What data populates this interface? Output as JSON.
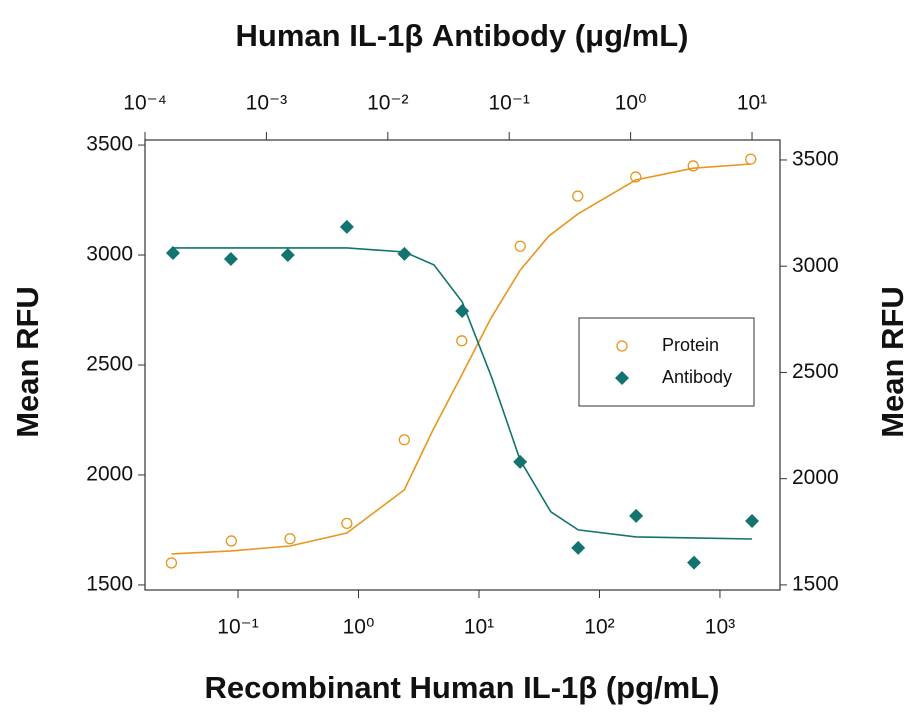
{
  "chart_data": {
    "type": "scatter",
    "x2label": "Human IL-1β Antibody (μg/mL)",
    "xlabel": "Recombinant Human IL-1β (pg/mL)",
    "ylabel": "Mean RFU",
    "y2label": "Mean RFU",
    "xscale": "log",
    "x2scale": "log",
    "xlim": [
      0.0169,
      3150
    ],
    "xticks": [
      {
        "value": 0.1,
        "label": "10⁻¹"
      },
      {
        "value": 1,
        "label": "10⁰"
      },
      {
        "value": 10,
        "label": "10¹"
      },
      {
        "value": 100,
        "label": "10²"
      },
      {
        "value": 1000,
        "label": "10³"
      }
    ],
    "x2lim": [
      0.0001,
      17
    ],
    "x2ticks": [
      {
        "value": 0.0001,
        "label": "10⁻⁴"
      },
      {
        "value": 0.001,
        "label": "10⁻³"
      },
      {
        "value": 0.01,
        "label": "10⁻²"
      },
      {
        "value": 0.1,
        "label": "10⁻¹"
      },
      {
        "value": 1,
        "label": "10⁰"
      },
      {
        "value": 10,
        "label": "10¹"
      }
    ],
    "ylim": [
      1477,
      3523
    ],
    "yticks": [
      1500,
      2000,
      2500,
      3000,
      3500
    ],
    "y2lim": [
      1476,
      3594
    ],
    "y2ticks": [
      1500,
      2000,
      2500,
      3000,
      3500
    ],
    "legend": "right",
    "series": [
      {
        "name": "Protein",
        "color": "#e8961e",
        "marker": "circle-open",
        "x": [
          0.028,
          0.088,
          0.27,
          0.8,
          2.4,
          7.2,
          22,
          66,
          200,
          600,
          1800
        ],
        "values": [
          1600,
          1700,
          1710,
          1780,
          2160,
          2610,
          3040,
          3268,
          3355,
          3405,
          3436
        ],
        "fit_x": [
          0.028,
          0.088,
          0.27,
          0.8,
          2.4,
          4.15,
          7.2,
          12.6,
          22,
          38,
          66,
          200,
          600,
          1800
        ],
        "fit_values": [
          1641,
          1655,
          1677,
          1736,
          1932,
          2205,
          2455,
          2714,
          2932,
          3086,
          3186,
          3341,
          3395,
          3414
        ]
      },
      {
        "name": "Antibody",
        "color": "#13736e",
        "marker": "diamond",
        "axis": "y2",
        "xaxis": "x2",
        "x": [
          0.00017,
          0.00051,
          0.0015,
          0.0046,
          0.0137,
          0.041,
          0.123,
          0.37,
          1.11,
          3.33,
          10
        ],
        "values": [
          3062,
          3034,
          3053,
          3185,
          3058,
          2789,
          2079,
          1674,
          1825,
          1605,
          1801
        ],
        "fit_x": [
          0.00017,
          0.0015,
          0.0046,
          0.0137,
          0.024,
          0.041,
          0.072,
          0.123,
          0.22,
          0.37,
          1.11,
          3.33,
          10
        ],
        "fit_values": [
          3086,
          3086,
          3086,
          3067,
          3006,
          2832,
          2474,
          2088,
          1844,
          1759,
          1726,
          1721,
          1716
        ]
      }
    ]
  }
}
